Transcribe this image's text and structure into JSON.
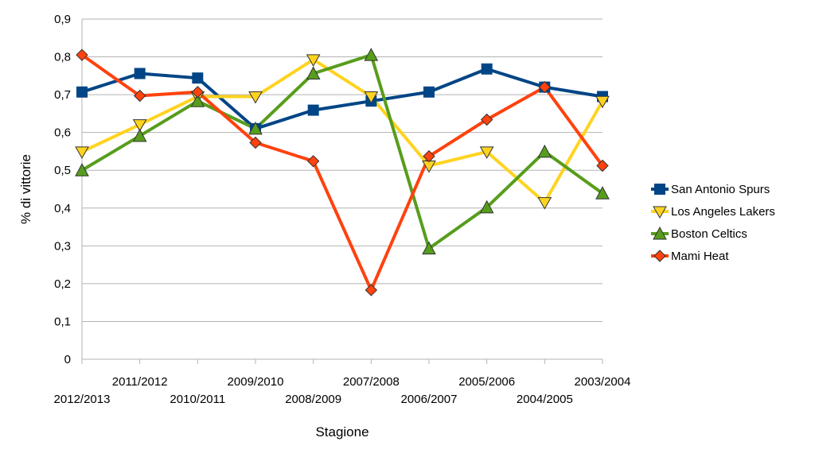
{
  "chart_data": {
    "type": "line",
    "xlabel": "Stagione",
    "ylabel": "% di vittorie",
    "ylim": [
      0,
      0.9
    ],
    "y_ticks": [
      "0",
      "0,1",
      "0,2",
      "0,3",
      "0,4",
      "0,5",
      "0,6",
      "0,7",
      "0,8",
      "0,9"
    ],
    "grid": "horizontal",
    "legend_position": "right",
    "categories": [
      "2012/2013",
      "2011/2012",
      "2010/2011",
      "2009/2010",
      "2008/2009",
      "2007/2008",
      "2006/2007",
      "2005/2006",
      "2004/2005",
      "2003/2004"
    ],
    "series": [
      {
        "name": "San Antonio Spurs",
        "color": "#004586",
        "marker": "square",
        "values": [
          0.707,
          0.756,
          0.744,
          0.61,
          0.659,
          0.683,
          0.707,
          0.768,
          0.72,
          0.695
        ]
      },
      {
        "name": "Los Angeles Lakers",
        "color": "#FFD320",
        "marker": "triangle-down",
        "values": [
          0.549,
          0.621,
          0.695,
          0.695,
          0.793,
          0.695,
          0.512,
          0.549,
          0.415,
          0.683
        ]
      },
      {
        "name": "Boston Celtics",
        "color": "#579D1C",
        "marker": "triangle-up",
        "values": [
          0.5,
          0.591,
          0.683,
          0.61,
          0.756,
          0.805,
          0.293,
          0.402,
          0.549,
          0.439
        ]
      },
      {
        "name": "Mami Heat",
        "color": "#FF420E",
        "marker": "diamond",
        "values": [
          0.805,
          0.697,
          0.707,
          0.573,
          0.524,
          0.183,
          0.537,
          0.634,
          0.72,
          0.512
        ]
      }
    ]
  }
}
